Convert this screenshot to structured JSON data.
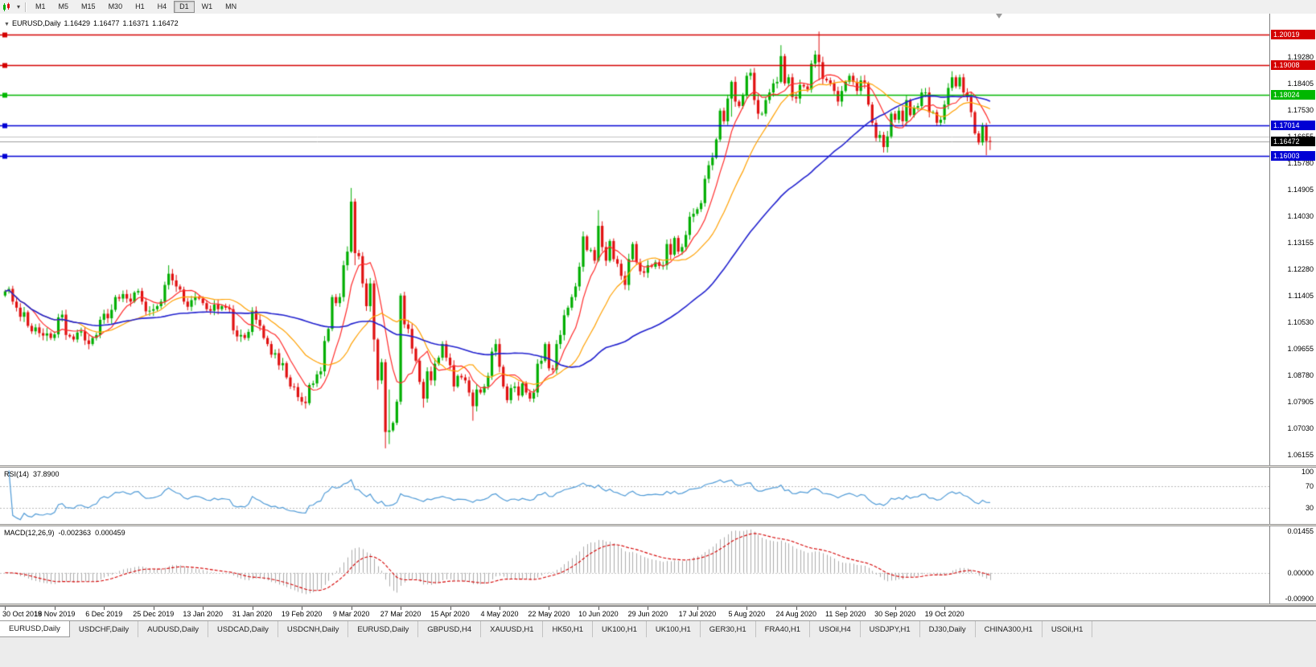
{
  "toolbar": {
    "chart_type_icon": "candlestick-chart",
    "dropdown_icon": "chevron-down",
    "timeframes": [
      "M1",
      "M5",
      "M15",
      "M30",
      "H1",
      "H4",
      "D1",
      "W1",
      "MN"
    ],
    "active_timeframe": "D1"
  },
  "main_chart": {
    "header": {
      "symbol": "EURUSD,Daily",
      "open": "1.16429",
      "high": "1.16477",
      "low": "1.16371",
      "close": "1.16472"
    },
    "price_range": {
      "min": 1.058,
      "max": 1.207
    },
    "price_axis_ticks": [
      "1.19280",
      "1.18405",
      "1.17530",
      "1.16655",
      "1.15780",
      "1.14905",
      "1.14030",
      "1.13155",
      "1.12280",
      "1.11405",
      "1.10530",
      "1.09655",
      "1.08780",
      "1.07905",
      "1.07030",
      "1.06155"
    ],
    "levels": [
      {
        "price": 1.20019,
        "label": "1.20019",
        "color": "#d40000"
      },
      {
        "price": 1.19008,
        "label": "1.19008",
        "color": "#d40000"
      },
      {
        "price": 1.18024,
        "label": "1.18024",
        "color": "#00b700"
      },
      {
        "price": 1.17014,
        "label": "1.17014",
        "color": "#0000d4"
      },
      {
        "price": 1.16003,
        "label": "1.16003",
        "color": "#0000d4"
      }
    ],
    "current_price": {
      "price": 1.16472,
      "label": "1.16472",
      "bg": "#000000"
    },
    "minor_gray_line": {
      "price": 1.16655,
      "color": "#c0c0c0"
    },
    "colors": {
      "up": "#00ae00",
      "down": "#e01010"
    }
  },
  "chart_data": {
    "type": "candlestick",
    "symbol": "EURUSD",
    "timeframe": "Daily",
    "first_open": 1.114,
    "closes": [
      1.1154,
      1.1162,
      1.112,
      1.11,
      1.107,
      1.1085,
      1.104,
      1.1022,
      1.1035,
      1.1016,
      1.1008,
      1.1015,
      1.1,
      1.1012,
      1.1068,
      1.1077,
      1.101,
      1.1005,
      1.0995,
      1.1018,
      1.1022,
      1.0992,
      1.098,
      1.1,
      1.101,
      1.106,
      1.108,
      1.1065,
      1.1093,
      1.1135,
      1.113,
      1.1145,
      1.113,
      1.112,
      1.115,
      1.1155,
      1.112,
      1.1088,
      1.109,
      1.1095,
      1.1105,
      1.112,
      1.1175,
      1.1212,
      1.119,
      1.117,
      1.116,
      1.112,
      1.1103,
      1.1125,
      1.1135,
      1.113,
      1.1115,
      1.1095,
      1.109,
      1.111,
      1.1095,
      1.1105,
      1.11,
      1.1095,
      1.1025,
      1.1005,
      1.101,
      1.1,
      1.102,
      1.109,
      1.106,
      1.104,
      1.1,
      1.098,
      1.0945,
      1.095,
      1.091,
      1.0917,
      1.087,
      1.084,
      1.0838,
      1.0805,
      1.079,
      1.0785,
      1.0845,
      1.085,
      1.088,
      1.089,
      1.099,
      1.103,
      1.1135,
      1.1115,
      1.1135,
      1.124,
      1.1285,
      1.145,
      1.128,
      1.127,
      1.118,
      1.1105,
      1.118,
      1.0995,
      1.086,
      1.092,
      1.069,
      1.0695,
      1.072,
      1.079,
      1.114,
      1.1045,
      1.103,
      1.0965,
      1.0925,
      1.0855,
      1.08,
      1.089,
      1.086,
      1.0915,
      1.0935,
      1.098,
      1.0935,
      1.091,
      1.084,
      1.0875,
      1.087,
      1.086,
      1.082,
      1.0775,
      1.083,
      1.082,
      1.084,
      1.0875,
      1.0955,
      1.098,
      1.0905,
      1.084,
      1.0795,
      1.0835,
      1.084,
      1.081,
      1.085,
      1.082,
      1.08,
      1.082,
      1.0915,
      1.0925,
      1.098,
      1.09,
      1.0895,
      1.098,
      1.101,
      1.1075,
      1.11,
      1.1135,
      1.117,
      1.1235,
      1.1335,
      1.129,
      1.129,
      1.1255,
      1.137,
      1.13,
      1.1255,
      1.132,
      1.126,
      1.1245,
      1.1205,
      1.1175,
      1.126,
      1.131,
      1.125,
      1.122,
      1.1215,
      1.124,
      1.1235,
      1.125,
      1.1238,
      1.124,
      1.131,
      1.1275,
      1.133,
      1.1285,
      1.13,
      1.134,
      1.14,
      1.141,
      1.1425,
      1.1445,
      1.1525,
      1.157,
      1.1595,
      1.1655,
      1.175,
      1.1715,
      1.179,
      1.1845,
      1.178,
      1.1765,
      1.18,
      1.1865,
      1.1875,
      1.1785,
      1.174,
      1.174,
      1.1785,
      1.181,
      1.184,
      1.1845,
      1.193,
      1.184,
      1.186,
      1.1795,
      1.179,
      1.1835,
      1.183,
      1.182,
      1.1905,
      1.1935,
      1.191,
      1.1855,
      1.185,
      1.184,
      1.1815,
      1.178,
      1.1815,
      1.1845,
      1.1865,
      1.1845,
      1.1815,
      1.185,
      1.184,
      1.177,
      1.171,
      1.166,
      1.167,
      1.163,
      1.1665,
      1.174,
      1.172,
      1.175,
      1.1715,
      1.1785,
      1.1735,
      1.176,
      1.1765,
      1.181,
      1.181,
      1.1745,
      1.1745,
      1.171,
      1.172,
      1.177,
      1.1825,
      1.186,
      1.183,
      1.186,
      1.181,
      1.1795,
      1.1745,
      1.1675,
      1.1645,
      1.17,
      1.165,
      1.1647
    ],
    "default_wick": 0.0016,
    "wick_overrides": {
      "43": [
        1.124,
        1.116
      ],
      "78": [
        1.082,
        1.0778
      ],
      "91": [
        1.1495,
        1.128
      ],
      "92": [
        1.146,
        1.124
      ],
      "97": [
        1.119,
        1.0955
      ],
      "98": [
        1.1,
        1.083
      ],
      "100": [
        1.093,
        1.0636
      ],
      "101": [
        1.083,
        1.065
      ],
      "104": [
        1.1147,
        1.078
      ],
      "110": [
        1.0865,
        1.077
      ],
      "123": [
        1.083,
        1.0727
      ],
      "156": [
        1.1422,
        1.125
      ],
      "191": [
        1.185,
        1.173
      ],
      "204": [
        1.1966,
        1.184
      ],
      "214": [
        1.2011,
        1.185
      ],
      "231": [
        1.168,
        1.1612
      ],
      "249": [
        1.188,
        1.1815
      ],
      "258": [
        1.171,
        1.1603
      ],
      "259": [
        1.1665,
        1.162
      ]
    },
    "date_labels": [
      "30 Oct 2019",
      "18 Nov 2019",
      "6 Dec 2019",
      "25 Dec 2019",
      "13 Jan 2020",
      "31 Jan 2020",
      "19 Feb 2020",
      "9 Mar 2020",
      "27 Mar 2020",
      "15 Apr 2020",
      "4 May 2020",
      "22 May 2020",
      "10 Jun 2020",
      "29 Jun 2020",
      "17 Jul 2020",
      "5 Aug 2020",
      "24 Aug 2020",
      "11 Sep 2020",
      "30 Sep 2020",
      "19 Oct 2020"
    ],
    "candles_per_date_label": 13
  },
  "indicators": {
    "moving_averages": [
      {
        "period": 8,
        "color": "#ff2a2a",
        "width": 1.2
      },
      {
        "period": 20,
        "color": "#ffa000",
        "width": 1.2
      },
      {
        "period": 55,
        "color": "#2121ce",
        "width": 1.6
      }
    ],
    "rsi": {
      "label": "RSI(14)",
      "value": "37.8900",
      "period": 14,
      "color": "#4f9ad6",
      "levels": [
        70,
        30
      ],
      "axis_ticks": [
        "100",
        "70",
        "30"
      ],
      "range": {
        "min": 0,
        "max": 105
      }
    },
    "macd": {
      "label": "MACD(12,26,9)",
      "value_main": "-0.002363",
      "value_signal": "0.000459",
      "fast": 12,
      "slow": 26,
      "signal": 9,
      "histogram_color": "#ababab",
      "signal_color": "#d40000",
      "axis_ticks": [
        "0.01455",
        "0.00000",
        "-0.00900"
      ],
      "range": {
        "min": -0.0107,
        "max": 0.0162
      }
    }
  },
  "tabs": [
    {
      "label": "EURUSD,Daily",
      "active": true
    },
    {
      "label": "USDCHF,Daily"
    },
    {
      "label": "AUDUSD,Daily"
    },
    {
      "label": "USDCAD,Daily"
    },
    {
      "label": "USDCNH,Daily"
    },
    {
      "label": "EURUSD,Daily"
    },
    {
      "label": "GBPUSD,H4"
    },
    {
      "label": "XAUUSD,H1"
    },
    {
      "label": "HK50,H1"
    },
    {
      "label": "UK100,H1"
    },
    {
      "label": "UK100,H1"
    },
    {
      "label": "GER30,H1"
    },
    {
      "label": "FRA40,H1"
    },
    {
      "label": "USOil,H4"
    },
    {
      "label": "USDJPY,H1"
    },
    {
      "label": "DJ30,Daily"
    },
    {
      "label": "CHINA300,H1"
    },
    {
      "label": "USOil,H1"
    }
  ]
}
